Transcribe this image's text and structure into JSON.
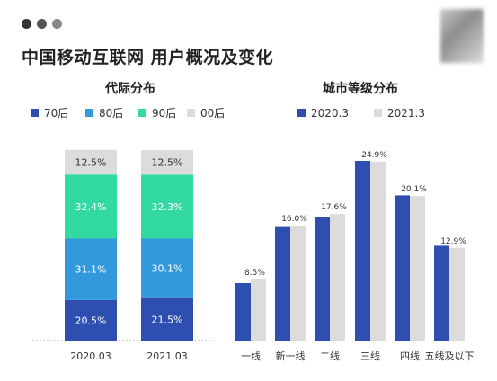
{
  "header": {
    "title": "中国移动互联网 用户概况及变化",
    "dots": [
      "#333333",
      "#555555",
      "#888888"
    ]
  },
  "chart_data": [
    {
      "type": "bar",
      "stacked": true,
      "title": "代际分布",
      "categories": [
        "2020.03",
        "2021.03"
      ],
      "series": [
        {
          "name": "70后",
          "values": [
            20.5,
            21.5
          ],
          "color": "#2f4fb0"
        },
        {
          "name": "80后",
          "values": [
            31.1,
            30.1
          ],
          "color": "#3399dd"
        },
        {
          "name": "90后",
          "values": [
            32.4,
            32.3
          ],
          "color": "#33d9a3"
        },
        {
          "name": "00后",
          "values": [
            12.5,
            12.5
          ],
          "color": "#dcdcdc"
        }
      ],
      "legend_position": "top",
      "ylim": [
        0,
        100
      ]
    },
    {
      "type": "bar",
      "title": "城市等级分布",
      "categories": [
        "一线",
        "新一线",
        "二线",
        "三线",
        "四线",
        "五线及以下"
      ],
      "series": [
        {
          "name": "2020.3",
          "values": [
            8.0,
            15.8,
            17.2,
            25.0,
            20.2,
            13.2
          ],
          "color": "#2f4fb0"
        },
        {
          "name": "2021.3",
          "values": [
            8.5,
            16.0,
            17.6,
            24.9,
            20.1,
            12.9
          ],
          "color": "#dcdcdc",
          "labels": [
            "8.5%",
            "16.0%",
            "17.6%",
            "24.9%",
            "20.1%",
            "12.9%"
          ]
        }
      ],
      "legend_position": "top",
      "ylim": [
        0,
        27
      ]
    }
  ]
}
